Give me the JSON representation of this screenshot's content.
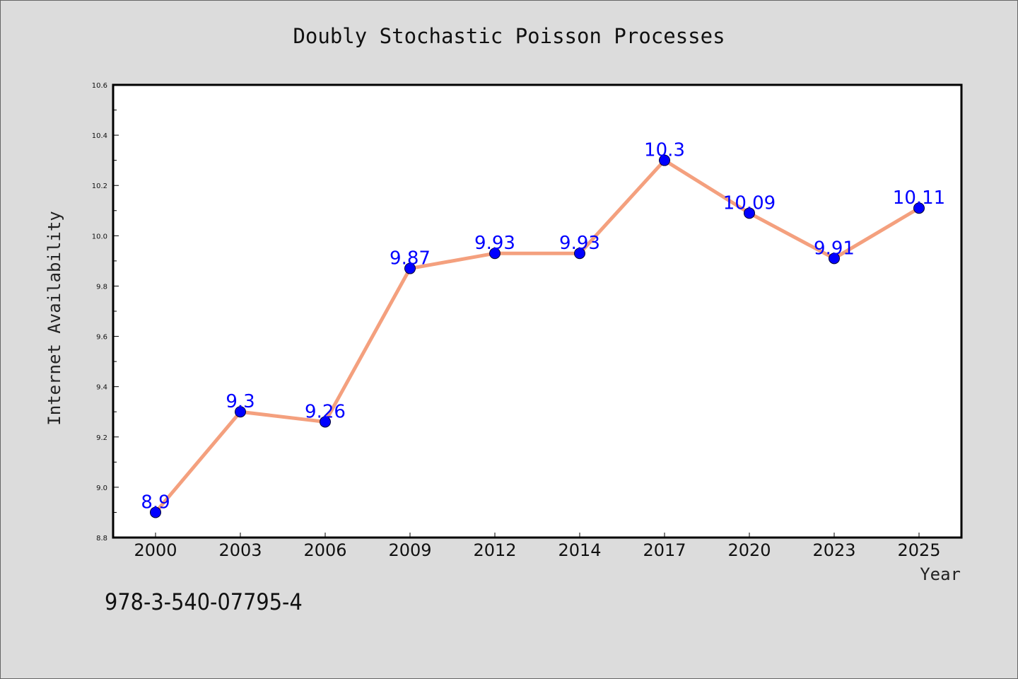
{
  "page": {
    "footer_text": "978-3-540-07795-4"
  },
  "chart_data": {
    "type": "line",
    "title": "Doubly Stochastic Poisson Processes",
    "xlabel": "Year",
    "ylabel": "Internet Availability",
    "categories": [
      "2000",
      "2003",
      "2006",
      "2009",
      "2012",
      "2014",
      "2017",
      "2020",
      "2023",
      "2025"
    ],
    "series": [
      {
        "values": [
          8.9,
          9.3,
          9.26,
          9.87,
          9.93,
          9.93,
          10.3,
          10.09,
          9.91,
          10.11
        ],
        "line_color": "#f4a07e",
        "marker_color": "#0000ff"
      }
    ],
    "data_labels": [
      "8.9",
      "9.3",
      "9.26",
      "9.87",
      "9.93",
      "9.93",
      "10.3",
      "10.09",
      "9.91",
      "10.11"
    ],
    "ylim": [
      8.8,
      10.6
    ],
    "yticks": [
      "8.8",
      "9.0",
      "9.2",
      "9.4",
      "9.6",
      "9.8",
      "10.0",
      "10.2",
      "10.4",
      "10.6"
    ],
    "grid": false,
    "legend": "none",
    "background": "#dcdcdc",
    "plot_background": "#ffffff"
  }
}
